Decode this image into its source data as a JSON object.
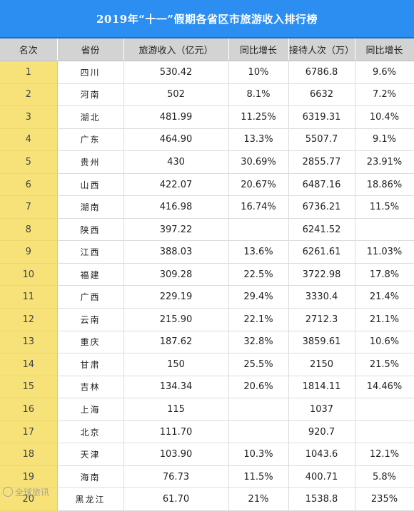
{
  "title": "2019年“十一”假期各省区市旅游收入排行榜",
  "headers": [
    "名次",
    "省份",
    "旅游收入（亿元）",
    "同比增长",
    "接待人次（万）",
    "同比增长"
  ],
  "rows": [
    {
      "rank": "1",
      "province": "四川",
      "income": "530.42",
      "income_growth": "10%",
      "visitors": "6786.8",
      "visitors_growth": "9.6%"
    },
    {
      "rank": "2",
      "province": "河南",
      "income": "502",
      "income_growth": "8.1%",
      "visitors": "6632",
      "visitors_growth": "7.2%"
    },
    {
      "rank": "3",
      "province": "湖北",
      "income": "481.99",
      "income_growth": "11.25%",
      "visitors": "6319.31",
      "visitors_growth": "10.4%"
    },
    {
      "rank": "4",
      "province": "广东",
      "income": "464.90",
      "income_growth": "13.3%",
      "visitors": "5507.7",
      "visitors_growth": "9.1%"
    },
    {
      "rank": "5",
      "province": "贵州",
      "income": "430",
      "income_growth": "30.69%",
      "visitors": "2855.77",
      "visitors_growth": "23.91%"
    },
    {
      "rank": "6",
      "province": "山西",
      "income": "422.07",
      "income_growth": "20.67%",
      "visitors": "6487.16",
      "visitors_growth": "18.86%"
    },
    {
      "rank": "7",
      "province": "湖南",
      "income": "416.98",
      "income_growth": "16.74%",
      "visitors": "6736.21",
      "visitors_growth": "11.5%"
    },
    {
      "rank": "8",
      "province": "陕西",
      "income": "397.22",
      "income_growth": "",
      "visitors": "6241.52",
      "visitors_growth": ""
    },
    {
      "rank": "9",
      "province": "江西",
      "income": "388.03",
      "income_growth": "13.6%",
      "visitors": "6261.61",
      "visitors_growth": "11.03%"
    },
    {
      "rank": "10",
      "province": "福建",
      "income": "309.28",
      "income_growth": "22.5%",
      "visitors": "3722.98",
      "visitors_growth": "17.8%"
    },
    {
      "rank": "11",
      "province": "广西",
      "income": "229.19",
      "income_growth": "29.4%",
      "visitors": "3330.4",
      "visitors_growth": "21.4%"
    },
    {
      "rank": "12",
      "province": "云南",
      "income": "215.90",
      "income_growth": "22.1%",
      "visitors": "2712.3",
      "visitors_growth": "21.1%"
    },
    {
      "rank": "13",
      "province": "重庆",
      "income": "187.62",
      "income_growth": "32.8%",
      "visitors": "3859.61",
      "visitors_growth": "10.6%"
    },
    {
      "rank": "14",
      "province": "甘肃",
      "income": "150",
      "income_growth": "25.5%",
      "visitors": "2150",
      "visitors_growth": "21.5%"
    },
    {
      "rank": "15",
      "province": "吉林",
      "income": "134.34",
      "income_growth": "20.6%",
      "visitors": "1814.11",
      "visitors_growth": "14.46%"
    },
    {
      "rank": "16",
      "province": "上海",
      "income": "115",
      "income_growth": "",
      "visitors": "1037",
      "visitors_growth": ""
    },
    {
      "rank": "17",
      "province": "北京",
      "income": "111.70",
      "income_growth": "",
      "visitors": "920.7",
      "visitors_growth": ""
    },
    {
      "rank": "18",
      "province": "天津",
      "income": "103.90",
      "income_growth": "10.3%",
      "visitors": "1043.6",
      "visitors_growth": "12.1%"
    },
    {
      "rank": "19",
      "province": "海南",
      "income": "76.73",
      "income_growth": "11.5%",
      "visitors": "400.71",
      "visitors_growth": "5.8%"
    },
    {
      "rank": "20",
      "province": "黑龙江",
      "income": "61.70",
      "income_growth": "21%",
      "visitors": "1538.8",
      "visitors_growth": "235%"
    }
  ],
  "watermark": "全球旅讯",
  "colors": {
    "title_bar": "#2b8ef0",
    "header_bg": "#d3d3d3",
    "rank_col": "#f7e27a"
  }
}
